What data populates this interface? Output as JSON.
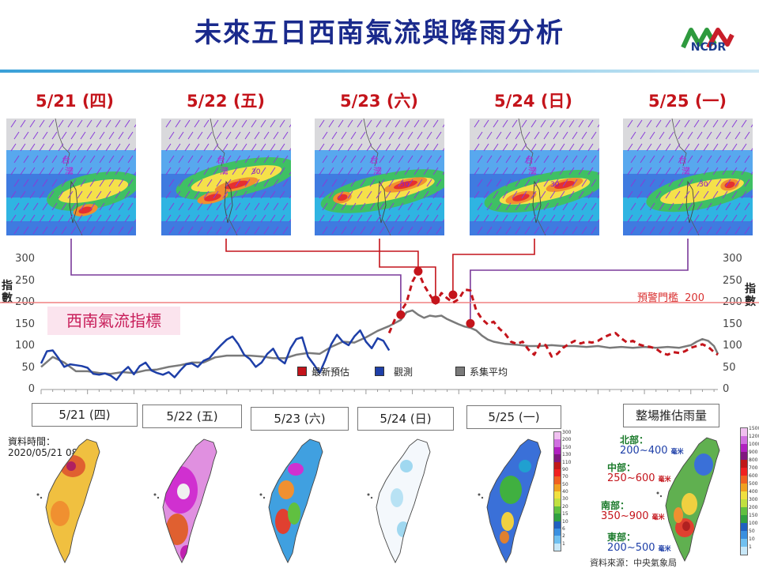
{
  "header": {
    "title": "未來五日西南氣流與降雨分析",
    "logo_text": "NCDR"
  },
  "forecast_days": [
    {
      "label": "5/21 (四)",
      "box_label": "5/21 (四)"
    },
    {
      "label": "5/22 (五)",
      "box_label": "5/22 (五)"
    },
    {
      "label": "5/23 (六)",
      "box_label": "5/23 (六)"
    },
    {
      "label": "5/24 (日)",
      "box_label": "5/24 (日)"
    },
    {
      "label": "5/25 (一)",
      "box_label": "5/25 (一)"
    }
  ],
  "map_labels": {
    "taiwan": "台灣",
    "contour": "30"
  },
  "rain_panel": {
    "data_time_label": "資料時間：",
    "data_time_value": "2020/05/21 08:00",
    "total_label": "整場推估雨量",
    "regions": [
      {
        "name": "北部：",
        "range": "200~400",
        "unit": "毫米"
      },
      {
        "name": "中部：",
        "range": "250~600",
        "unit": "毫米"
      },
      {
        "name": "南部：",
        "range": "350~900",
        "unit": "毫米"
      },
      {
        "name": "東部：",
        "range": "200~500",
        "unit": "毫米"
      }
    ],
    "source": "資料來源：中央氣象局",
    "daily_colorbar_ticks": [
      "300",
      "200",
      "150",
      "130",
      "110",
      "90",
      "70",
      "50",
      "40",
      "30",
      "20",
      "15",
      "10",
      "6",
      "2",
      "1"
    ],
    "total_colorbar_ticks": [
      "1500",
      "1200",
      "1000",
      "900",
      "800",
      "700",
      "600",
      "500",
      "400",
      "300",
      "200",
      "150",
      "100",
      "50",
      "10",
      "1"
    ]
  },
  "colors": {
    "forecast": "#c4141b",
    "observed": "#1e3fa8",
    "ensemble": "#7a7a7a",
    "threshold": "#f08080",
    "title": "#1a2a8c"
  },
  "chart_data": {
    "type": "line",
    "title": "",
    "ylabel": "指數",
    "ylim": [
      0,
      300
    ],
    "yticks": [
      0,
      50,
      100,
      150,
      200,
      250,
      300
    ],
    "index_label": "西南氣流指標",
    "threshold": {
      "label": "預警門檻",
      "value": 200
    },
    "x_unit": "hours from 2020/05/21 00:00",
    "series": [
      {
        "name": "觀測",
        "color": "#1e3fa8",
        "style": "solid",
        "points": [
          [
            0,
            60
          ],
          [
            3,
            88
          ],
          [
            6,
            90
          ],
          [
            9,
            72
          ],
          [
            12,
            52
          ],
          [
            15,
            58
          ],
          [
            18,
            56
          ],
          [
            21,
            54
          ],
          [
            24,
            50
          ],
          [
            27,
            36
          ],
          [
            30,
            34
          ],
          [
            33,
            37
          ],
          [
            36,
            32
          ],
          [
            39,
            22
          ],
          [
            42,
            40
          ],
          [
            45,
            52
          ],
          [
            48,
            35
          ],
          [
            51,
            54
          ],
          [
            54,
            62
          ],
          [
            57,
            44
          ],
          [
            60,
            38
          ],
          [
            63,
            34
          ],
          [
            66,
            40
          ],
          [
            69,
            28
          ],
          [
            72,
            44
          ],
          [
            75,
            58
          ],
          [
            78,
            60
          ],
          [
            81,
            52
          ],
          [
            84,
            66
          ],
          [
            87,
            72
          ],
          [
            90,
            88
          ],
          [
            93,
            102
          ],
          [
            96,
            115
          ],
          [
            99,
            122
          ],
          [
            102,
            104
          ],
          [
            105,
            80
          ],
          [
            108,
            70
          ],
          [
            111,
            52
          ],
          [
            114,
            62
          ],
          [
            117,
            82
          ],
          [
            120,
            94
          ],
          [
            123,
            70
          ],
          [
            126,
            60
          ],
          [
            129,
            95
          ],
          [
            132,
            116
          ],
          [
            135,
            120
          ],
          [
            138,
            76
          ],
          [
            141,
            58
          ],
          [
            144,
            38
          ],
          [
            147,
            68
          ],
          [
            150,
            104
          ],
          [
            153,
            126
          ],
          [
            156,
            110
          ],
          [
            159,
            102
          ],
          [
            162,
            122
          ],
          [
            165,
            136
          ],
          [
            168,
            110
          ],
          [
            171,
            95
          ],
          [
            174,
            118
          ],
          [
            177,
            112
          ],
          [
            180,
            90
          ]
        ]
      },
      {
        "name": "最新預估",
        "color": "#c4141b",
        "style": "dashed",
        "points": [
          [
            180,
            130
          ],
          [
            183,
            162
          ],
          [
            186,
            180
          ],
          [
            189,
            200
          ],
          [
            192,
            248
          ],
          [
            195,
            272
          ],
          [
            198,
            240
          ],
          [
            201,
            218
          ],
          [
            204,
            198
          ],
          [
            207,
            222
          ],
          [
            210,
            210
          ],
          [
            213,
            200
          ],
          [
            216,
            208
          ],
          [
            219,
            230
          ],
          [
            222,
            228
          ],
          [
            225,
            182
          ],
          [
            228,
            162
          ],
          [
            231,
            150
          ],
          [
            234,
            156
          ],
          [
            237,
            140
          ],
          [
            240,
            128
          ],
          [
            243,
            110
          ],
          [
            246,
            105
          ],
          [
            249,
            110
          ],
          [
            252,
            92
          ],
          [
            255,
            80
          ],
          [
            258,
            105
          ],
          [
            261,
            102
          ],
          [
            264,
            76
          ],
          [
            267,
            82
          ],
          [
            270,
            96
          ],
          [
            273,
            105
          ],
          [
            276,
            112
          ],
          [
            279,
            106
          ],
          [
            282,
            110
          ],
          [
            285,
            108
          ],
          [
            288,
            112
          ],
          [
            291,
            120
          ],
          [
            294,
            126
          ],
          [
            297,
            130
          ],
          [
            300,
            118
          ],
          [
            303,
            108
          ],
          [
            306,
            112
          ],
          [
            309,
            104
          ],
          [
            312,
            100
          ],
          [
            315,
            98
          ],
          [
            318,
            94
          ],
          [
            321,
            84
          ],
          [
            324,
            80
          ],
          [
            327,
            86
          ],
          [
            330,
            84
          ],
          [
            333,
            88
          ],
          [
            336,
            96
          ],
          [
            339,
            100
          ],
          [
            342,
            104
          ],
          [
            345,
            98
          ],
          [
            348,
            86
          ],
          [
            350,
            80
          ]
        ]
      },
      {
        "name": "系集平均",
        "color": "#7a7a7a",
        "style": "solid",
        "points": [
          [
            0,
            52
          ],
          [
            6,
            75
          ],
          [
            12,
            62
          ],
          [
            18,
            42
          ],
          [
            24,
            42
          ],
          [
            30,
            38
          ],
          [
            36,
            36
          ],
          [
            42,
            40
          ],
          [
            48,
            38
          ],
          [
            54,
            44
          ],
          [
            60,
            46
          ],
          [
            66,
            52
          ],
          [
            72,
            56
          ],
          [
            78,
            62
          ],
          [
            84,
            62
          ],
          [
            90,
            74
          ],
          [
            96,
            78
          ],
          [
            102,
            78
          ],
          [
            108,
            78
          ],
          [
            114,
            76
          ],
          [
            120,
            72
          ],
          [
            126,
            72
          ],
          [
            132,
            80
          ],
          [
            138,
            84
          ],
          [
            144,
            82
          ],
          [
            150,
            98
          ],
          [
            156,
            110
          ],
          [
            162,
            108
          ],
          [
            168,
            120
          ],
          [
            174,
            135
          ],
          [
            180,
            146
          ],
          [
            186,
            160
          ],
          [
            189,
            178
          ],
          [
            192,
            182
          ],
          [
            195,
            172
          ],
          [
            198,
            165
          ],
          [
            201,
            170
          ],
          [
            204,
            168
          ],
          [
            207,
            170
          ],
          [
            210,
            162
          ],
          [
            213,
            156
          ],
          [
            216,
            150
          ],
          [
            219,
            145
          ],
          [
            222,
            142
          ],
          [
            225,
            136
          ],
          [
            228,
            124
          ],
          [
            231,
            115
          ],
          [
            234,
            110
          ],
          [
            240,
            105
          ],
          [
            246,
            103
          ],
          [
            252,
            100
          ],
          [
            258,
            100
          ],
          [
            264,
            102
          ],
          [
            270,
            100
          ],
          [
            276,
            100
          ],
          [
            282,
            98
          ],
          [
            288,
            100
          ],
          [
            294,
            96
          ],
          [
            300,
            98
          ],
          [
            306,
            96
          ],
          [
            312,
            98
          ],
          [
            318,
            96
          ],
          [
            324,
            98
          ],
          [
            330,
            96
          ],
          [
            336,
            102
          ],
          [
            339,
            110
          ],
          [
            342,
            116
          ],
          [
            345,
            112
          ],
          [
            348,
            100
          ],
          [
            350,
            82
          ]
        ]
      }
    ],
    "forecast_markers": [
      {
        "day": "5/21 (四)",
        "x": 186,
        "y": 172
      },
      {
        "day": "5/22 (五)",
        "x": 195,
        "y": 272
      },
      {
        "day": "5/23 (六)",
        "x": 204,
        "y": 206
      },
      {
        "day": "5/24 (日)",
        "x": 213,
        "y": 218
      },
      {
        "day": "5/25 (一)",
        "x": 222,
        "y": 152
      }
    ]
  }
}
